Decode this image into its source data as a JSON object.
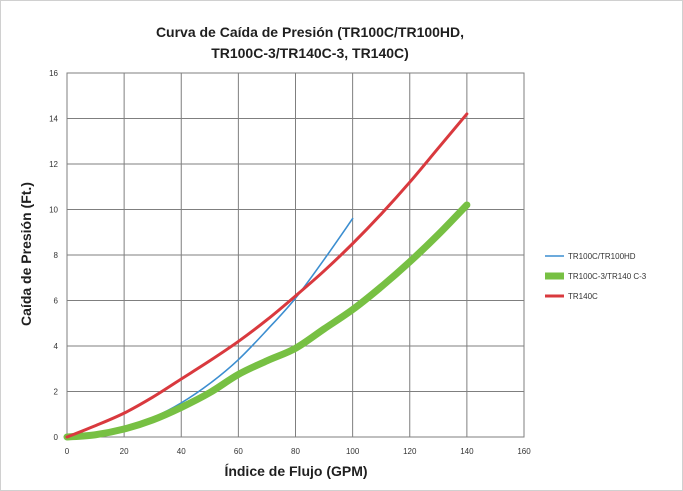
{
  "chart_data": {
    "type": "line",
    "title_lines": [
      "Curva de Caída de Presión  (TR100C/TR100HD,",
      "TR100C-3/TR140C-3, TR140C)"
    ],
    "xlabel": "Índice de Flujo (GPM)",
    "ylabel": "Caída de Presión (Ft.)",
    "xlim": [
      0,
      160
    ],
    "ylim": [
      0,
      16
    ],
    "x_ticks": [
      "0",
      "20",
      "40",
      "60",
      "80",
      "100",
      "120",
      "140",
      "160"
    ],
    "y_ticks": [
      "0",
      "2",
      "4",
      "6",
      "8",
      "10",
      "12",
      "14",
      "16"
    ],
    "grid": true,
    "legend_position": "right",
    "series": [
      {
        "name": "TR100C/TR100HD",
        "color": "#3c8ed0",
        "x": [
          0,
          10,
          20,
          30,
          40,
          50,
          60,
          70,
          80,
          90,
          100
        ],
        "y": [
          0,
          0.1,
          0.4,
          0.85,
          1.5,
          2.35,
          3.4,
          4.7,
          6.1,
          7.8,
          9.6
        ]
      },
      {
        "name": "TR100C-3/TR140 C-3",
        "color": "#77c043",
        "x": [
          0,
          10,
          20,
          30,
          40,
          50,
          60,
          70,
          80,
          90,
          100,
          110,
          120,
          130,
          140
        ],
        "y": [
          0,
          0.1,
          0.35,
          0.75,
          1.3,
          1.95,
          2.75,
          3.35,
          3.9,
          4.75,
          5.6,
          6.6,
          7.7,
          8.9,
          10.2
        ]
      },
      {
        "name": "TR140C",
        "color": "#d9393e",
        "x": [
          0,
          10,
          20,
          30,
          40,
          50,
          60,
          70,
          80,
          90,
          100,
          110,
          120,
          130,
          140
        ],
        "y": [
          0,
          0.5,
          1.05,
          1.75,
          2.55,
          3.35,
          4.2,
          5.15,
          6.2,
          7.3,
          8.5,
          9.8,
          11.2,
          12.7,
          14.2
        ]
      }
    ]
  }
}
